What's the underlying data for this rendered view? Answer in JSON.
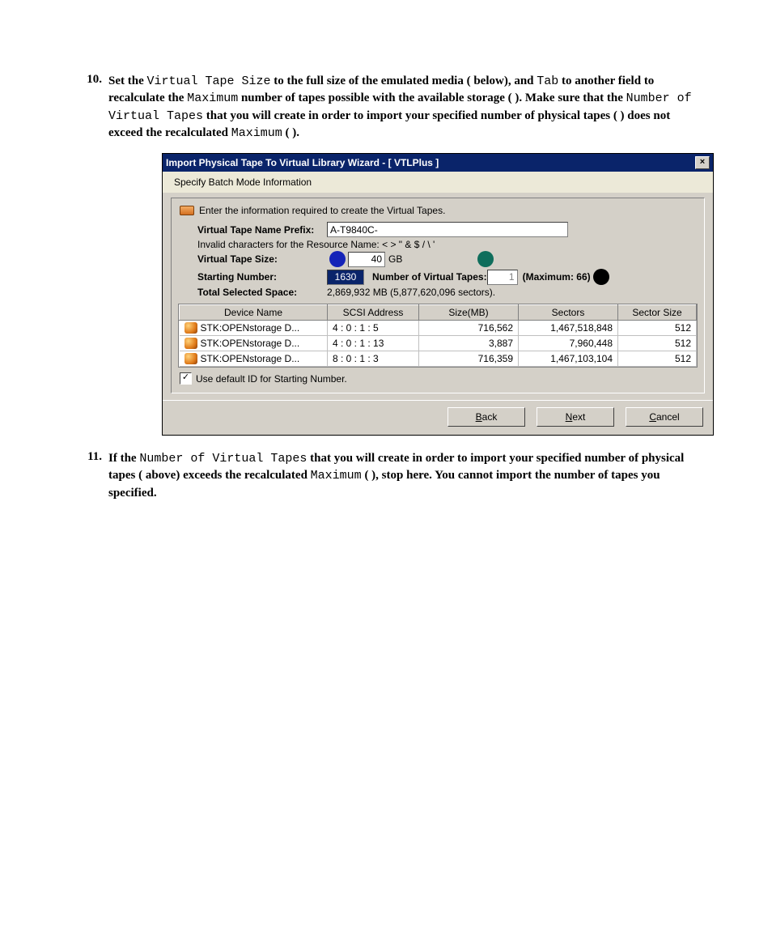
{
  "step10": {
    "num": "10.",
    "p1a": "Set the ",
    "p1b": "Virtual Tape Size",
    "p1c": " to the full size of the emulated media (   below), and ",
    "p1d": "Tab",
    "p1e": " to another field to recalculate the ",
    "p1f": "Maximum",
    "p1g": " number of tapes possible with the available storage (  ). Make sure that the ",
    "p1h": "Number of Virtual Tapes",
    "p1i": " that you will create in order to import your specified number of physical tapes (  ) does not exceed the recalculated ",
    "p1j": "Maximum",
    "p1k": " (  )."
  },
  "step11": {
    "num": "11.",
    "p1a": "If the ",
    "p1b": "Number of Virtual Tapes",
    "p1c": " that you will create in order to import your specified number of physical tapes (   above) exceeds the recalculated ",
    "p1d": "Maximum",
    "p1e": " (  ), stop here. You cannot import the number of tapes you specified."
  },
  "dialog": {
    "title": "Import Physical Tape To Virtual Library Wizard - [ VTLPlus ]",
    "close": "×",
    "subtitle": "Specify Batch Mode Information",
    "intro": "Enter the information required to create the Virtual Tapes.",
    "labels": {
      "prefix": "Virtual Tape Name Prefix:",
      "size": "Virtual Tape Size:",
      "starting": "Starting Number:",
      "numtapes": "Number of Virtual Tapes:",
      "max": "(Maximum: 66)",
      "total": "Total Selected Space:",
      "unit": "GB"
    },
    "values": {
      "prefix": "A-T9840C-",
      "size": "40",
      "starting": "1630",
      "numtapes": "1",
      "total": "2,869,932 MB (5,877,620,096 sectors)."
    },
    "invalid": "Invalid characters for the Resource Name: < > \" & $ / \\ '",
    "checkbox": "Use default ID for Starting Number.",
    "columns": [
      "Device Name",
      "SCSI Address",
      "Size(MB)",
      "Sectors",
      "Sector Size"
    ],
    "rows": [
      {
        "name": "STK:OPENstorage D...",
        "scsi": "4 : 0 : 1 : 5",
        "size": "716,562",
        "sectors": "1,467,518,848",
        "secsize": "512"
      },
      {
        "name": "STK:OPENstorage D...",
        "scsi": "4 : 0 : 1 : 13",
        "size": "3,887",
        "sectors": "7,960,448",
        "secsize": "512"
      },
      {
        "name": "STK:OPENstorage D...",
        "scsi": "8 : 0 : 1 : 3",
        "size": "716,359",
        "sectors": "1,467,103,104",
        "secsize": "512"
      }
    ],
    "buttons": {
      "back": "Back",
      "next": "Next",
      "cancel": "Cancel"
    }
  }
}
